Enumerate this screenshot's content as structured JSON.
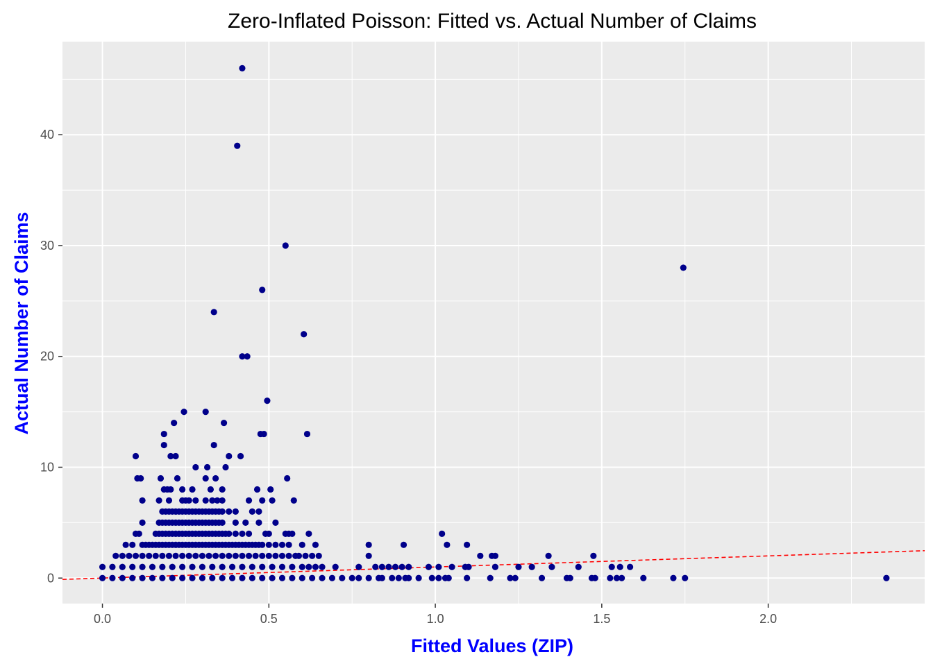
{
  "chart_data": {
    "type": "scatter",
    "title": "Zero-Inflated Poisson: Fitted vs. Actual Number of Claims",
    "xlabel": "Fitted Values (ZIP)",
    "ylabel": "Actual Number of Claims",
    "xlim": [
      -0.12,
      2.47
    ],
    "ylim": [
      -2.3,
      48.4
    ],
    "x_ticks": [
      0.0,
      0.5,
      1.0,
      1.5,
      2.0
    ],
    "x_tick_labels": [
      "0.0",
      "0.5",
      "1.0",
      "1.5",
      "2.0"
    ],
    "y_ticks": [
      0,
      10,
      20,
      30,
      40
    ],
    "y_tick_labels": [
      "0",
      "10",
      "20",
      "30",
      "40"
    ],
    "grid": true,
    "background": "#ebebeb",
    "point_color": "#00008b",
    "reference_line": {
      "style": "dashed",
      "color": "#ff0000",
      "slope": 1,
      "intercept": 0
    },
    "series": [
      {
        "points": [
          [
            0.42,
            46
          ],
          [
            0.405,
            39
          ],
          [
            0.55,
            30
          ],
          [
            1.745,
            28
          ],
          [
            0.48,
            26
          ],
          [
            0.335,
            24
          ],
          [
            0.605,
            22
          ],
          [
            0.42,
            20
          ],
          [
            0.435,
            20
          ],
          [
            0.495,
            16
          ],
          [
            0.245,
            15
          ],
          [
            0.31,
            15
          ],
          [
            0.215,
            14
          ],
          [
            0.365,
            14
          ],
          [
            0.185,
            13
          ],
          [
            0.475,
            13
          ],
          [
            0.485,
            13
          ],
          [
            0.615,
            13
          ],
          [
            0.185,
            12
          ],
          [
            0.335,
            12
          ],
          [
            0.1,
            11
          ],
          [
            0.205,
            11
          ],
          [
            0.22,
            11
          ],
          [
            0.38,
            11
          ],
          [
            0.415,
            11
          ],
          [
            0.28,
            10
          ],
          [
            0.315,
            10
          ],
          [
            0.37,
            10
          ],
          [
            0.105,
            9
          ],
          [
            0.115,
            9
          ],
          [
            0.175,
            9
          ],
          [
            0.225,
            9
          ],
          [
            0.31,
            9
          ],
          [
            0.34,
            9
          ],
          [
            0.555,
            9
          ],
          [
            0.185,
            8
          ],
          [
            0.195,
            8
          ],
          [
            0.205,
            8
          ],
          [
            0.24,
            8
          ],
          [
            0.27,
            8
          ],
          [
            0.325,
            8
          ],
          [
            0.36,
            8
          ],
          [
            0.465,
            8
          ],
          [
            0.505,
            8
          ],
          [
            0.12,
            7
          ],
          [
            0.17,
            7
          ],
          [
            0.2,
            7
          ],
          [
            0.24,
            7
          ],
          [
            0.25,
            7
          ],
          [
            0.26,
            7
          ],
          [
            0.28,
            7
          ],
          [
            0.31,
            7
          ],
          [
            0.33,
            7
          ],
          [
            0.345,
            7
          ],
          [
            0.36,
            7
          ],
          [
            0.44,
            7
          ],
          [
            0.48,
            7
          ],
          [
            0.51,
            7
          ],
          [
            0.575,
            7
          ],
          [
            0.18,
            6
          ],
          [
            0.19,
            6
          ],
          [
            0.2,
            6
          ],
          [
            0.21,
            6
          ],
          [
            0.22,
            6
          ],
          [
            0.23,
            6
          ],
          [
            0.24,
            6
          ],
          [
            0.25,
            6
          ],
          [
            0.26,
            6
          ],
          [
            0.27,
            6
          ],
          [
            0.28,
            6
          ],
          [
            0.29,
            6
          ],
          [
            0.3,
            6
          ],
          [
            0.31,
            6
          ],
          [
            0.32,
            6
          ],
          [
            0.33,
            6
          ],
          [
            0.34,
            6
          ],
          [
            0.35,
            6
          ],
          [
            0.36,
            6
          ],
          [
            0.38,
            6
          ],
          [
            0.4,
            6
          ],
          [
            0.45,
            6
          ],
          [
            0.47,
            6
          ],
          [
            0.12,
            5
          ],
          [
            0.17,
            5
          ],
          [
            0.18,
            5
          ],
          [
            0.19,
            5
          ],
          [
            0.2,
            5
          ],
          [
            0.21,
            5
          ],
          [
            0.22,
            5
          ],
          [
            0.23,
            5
          ],
          [
            0.24,
            5
          ],
          [
            0.25,
            5
          ],
          [
            0.26,
            5
          ],
          [
            0.27,
            5
          ],
          [
            0.28,
            5
          ],
          [
            0.29,
            5
          ],
          [
            0.3,
            5
          ],
          [
            0.31,
            5
          ],
          [
            0.32,
            5
          ],
          [
            0.33,
            5
          ],
          [
            0.34,
            5
          ],
          [
            0.35,
            5
          ],
          [
            0.36,
            5
          ],
          [
            0.4,
            5
          ],
          [
            0.43,
            5
          ],
          [
            0.47,
            5
          ],
          [
            0.52,
            5
          ],
          [
            0.1,
            4
          ],
          [
            0.11,
            4
          ],
          [
            0.16,
            4
          ],
          [
            0.17,
            4
          ],
          [
            0.18,
            4
          ],
          [
            0.19,
            4
          ],
          [
            0.2,
            4
          ],
          [
            0.21,
            4
          ],
          [
            0.22,
            4
          ],
          [
            0.23,
            4
          ],
          [
            0.24,
            4
          ],
          [
            0.25,
            4
          ],
          [
            0.26,
            4
          ],
          [
            0.27,
            4
          ],
          [
            0.28,
            4
          ],
          [
            0.29,
            4
          ],
          [
            0.3,
            4
          ],
          [
            0.31,
            4
          ],
          [
            0.32,
            4
          ],
          [
            0.33,
            4
          ],
          [
            0.34,
            4
          ],
          [
            0.35,
            4
          ],
          [
            0.36,
            4
          ],
          [
            0.37,
            4
          ],
          [
            0.38,
            4
          ],
          [
            0.4,
            4
          ],
          [
            0.42,
            4
          ],
          [
            0.44,
            4
          ],
          [
            0.49,
            4
          ],
          [
            0.5,
            4
          ],
          [
            0.55,
            4
          ],
          [
            0.56,
            4
          ],
          [
            0.57,
            4
          ],
          [
            0.62,
            4
          ],
          [
            1.02,
            4
          ],
          [
            0.07,
            3
          ],
          [
            0.09,
            3
          ],
          [
            0.12,
            3
          ],
          [
            0.13,
            3
          ],
          [
            0.14,
            3
          ],
          [
            0.15,
            3
          ],
          [
            0.16,
            3
          ],
          [
            0.17,
            3
          ],
          [
            0.18,
            3
          ],
          [
            0.19,
            3
          ],
          [
            0.2,
            3
          ],
          [
            0.21,
            3
          ],
          [
            0.22,
            3
          ],
          [
            0.23,
            3
          ],
          [
            0.24,
            3
          ],
          [
            0.25,
            3
          ],
          [
            0.26,
            3
          ],
          [
            0.27,
            3
          ],
          [
            0.28,
            3
          ],
          [
            0.29,
            3
          ],
          [
            0.3,
            3
          ],
          [
            0.31,
            3
          ],
          [
            0.32,
            3
          ],
          [
            0.33,
            3
          ],
          [
            0.34,
            3
          ],
          [
            0.35,
            3
          ],
          [
            0.36,
            3
          ],
          [
            0.37,
            3
          ],
          [
            0.38,
            3
          ],
          [
            0.39,
            3
          ],
          [
            0.4,
            3
          ],
          [
            0.41,
            3
          ],
          [
            0.42,
            3
          ],
          [
            0.43,
            3
          ],
          [
            0.44,
            3
          ],
          [
            0.45,
            3
          ],
          [
            0.46,
            3
          ],
          [
            0.47,
            3
          ],
          [
            0.48,
            3
          ],
          [
            0.5,
            3
          ],
          [
            0.52,
            3
          ],
          [
            0.54,
            3
          ],
          [
            0.56,
            3
          ],
          [
            0.6,
            3
          ],
          [
            0.64,
            3
          ],
          [
            0.8,
            3
          ],
          [
            0.905,
            3
          ],
          [
            1.035,
            3
          ],
          [
            1.095,
            3
          ],
          [
            0.04,
            2
          ],
          [
            0.06,
            2
          ],
          [
            0.08,
            2
          ],
          [
            0.1,
            2
          ],
          [
            0.12,
            2
          ],
          [
            0.14,
            2
          ],
          [
            0.16,
            2
          ],
          [
            0.18,
            2
          ],
          [
            0.2,
            2
          ],
          [
            0.22,
            2
          ],
          [
            0.24,
            2
          ],
          [
            0.26,
            2
          ],
          [
            0.28,
            2
          ],
          [
            0.3,
            2
          ],
          [
            0.32,
            2
          ],
          [
            0.34,
            2
          ],
          [
            0.36,
            2
          ],
          [
            0.38,
            2
          ],
          [
            0.4,
            2
          ],
          [
            0.42,
            2
          ],
          [
            0.44,
            2
          ],
          [
            0.46,
            2
          ],
          [
            0.48,
            2
          ],
          [
            0.5,
            2
          ],
          [
            0.52,
            2
          ],
          [
            0.54,
            2
          ],
          [
            0.56,
            2
          ],
          [
            0.58,
            2
          ],
          [
            0.59,
            2
          ],
          [
            0.61,
            2
          ],
          [
            0.63,
            2
          ],
          [
            0.65,
            2
          ],
          [
            0.8,
            2
          ],
          [
            1.135,
            2
          ],
          [
            1.17,
            2
          ],
          [
            1.18,
            2
          ],
          [
            1.34,
            2
          ],
          [
            1.475,
            2
          ],
          [
            0.0,
            1
          ],
          [
            0.03,
            1
          ],
          [
            0.06,
            1
          ],
          [
            0.09,
            1
          ],
          [
            0.12,
            1
          ],
          [
            0.15,
            1
          ],
          [
            0.18,
            1
          ],
          [
            0.21,
            1
          ],
          [
            0.24,
            1
          ],
          [
            0.27,
            1
          ],
          [
            0.3,
            1
          ],
          [
            0.33,
            1
          ],
          [
            0.36,
            1
          ],
          [
            0.39,
            1
          ],
          [
            0.42,
            1
          ],
          [
            0.45,
            1
          ],
          [
            0.48,
            1
          ],
          [
            0.51,
            1
          ],
          [
            0.54,
            1
          ],
          [
            0.57,
            1
          ],
          [
            0.6,
            1
          ],
          [
            0.62,
            1
          ],
          [
            0.64,
            1
          ],
          [
            0.66,
            1
          ],
          [
            0.7,
            1
          ],
          [
            0.77,
            1
          ],
          [
            0.82,
            1
          ],
          [
            0.84,
            1
          ],
          [
            0.86,
            1
          ],
          [
            0.88,
            1
          ],
          [
            0.9,
            1
          ],
          [
            0.92,
            1
          ],
          [
            0.98,
            1
          ],
          [
            1.01,
            1
          ],
          [
            1.05,
            1
          ],
          [
            1.09,
            1
          ],
          [
            1.1,
            1
          ],
          [
            1.18,
            1
          ],
          [
            1.25,
            1
          ],
          [
            1.29,
            1
          ],
          [
            1.35,
            1
          ],
          [
            1.43,
            1
          ],
          [
            1.53,
            1
          ],
          [
            1.555,
            1
          ],
          [
            1.585,
            1
          ],
          [
            0.0,
            0
          ],
          [
            0.03,
            0
          ],
          [
            0.06,
            0
          ],
          [
            0.09,
            0
          ],
          [
            0.12,
            0
          ],
          [
            0.15,
            0
          ],
          [
            0.18,
            0
          ],
          [
            0.21,
            0
          ],
          [
            0.24,
            0
          ],
          [
            0.27,
            0
          ],
          [
            0.3,
            0
          ],
          [
            0.33,
            0
          ],
          [
            0.36,
            0
          ],
          [
            0.39,
            0
          ],
          [
            0.42,
            0
          ],
          [
            0.45,
            0
          ],
          [
            0.48,
            0
          ],
          [
            0.51,
            0
          ],
          [
            0.54,
            0
          ],
          [
            0.57,
            0
          ],
          [
            0.6,
            0
          ],
          [
            0.63,
            0
          ],
          [
            0.66,
            0
          ],
          [
            0.69,
            0
          ],
          [
            0.72,
            0
          ],
          [
            0.75,
            0
          ],
          [
            0.77,
            0
          ],
          [
            0.8,
            0
          ],
          [
            0.83,
            0
          ],
          [
            0.84,
            0
          ],
          [
            0.87,
            0
          ],
          [
            0.89,
            0
          ],
          [
            0.91,
            0
          ],
          [
            0.92,
            0
          ],
          [
            0.95,
            0
          ],
          [
            0.99,
            0
          ],
          [
            1.01,
            0
          ],
          [
            1.03,
            0
          ],
          [
            1.04,
            0
          ],
          [
            1.095,
            0
          ],
          [
            1.165,
            0
          ],
          [
            1.225,
            0
          ],
          [
            1.24,
            0
          ],
          [
            1.32,
            0
          ],
          [
            1.395,
            0
          ],
          [
            1.405,
            0
          ],
          [
            1.47,
            0
          ],
          [
            1.48,
            0
          ],
          [
            1.525,
            0
          ],
          [
            1.545,
            0
          ],
          [
            1.56,
            0
          ],
          [
            1.625,
            0
          ],
          [
            1.715,
            0
          ],
          [
            1.75,
            0
          ],
          [
            2.355,
            0
          ]
        ]
      }
    ]
  }
}
